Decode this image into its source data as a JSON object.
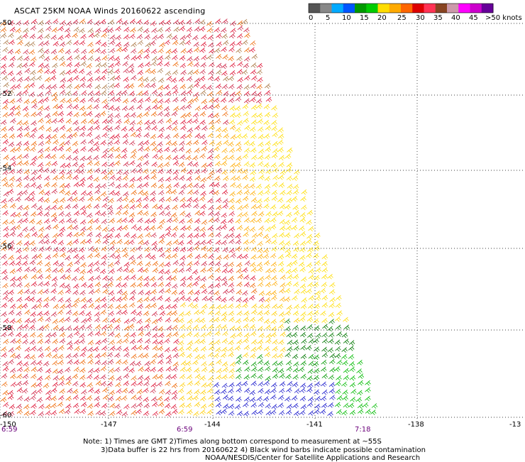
{
  "title": "ASCAT 25KM NOAA Winds 20160622 ascending",
  "scale": {
    "colors": [
      "#555555",
      "#888888",
      "#00aaff",
      "#0055ff",
      "#009900",
      "#00cc00",
      "#ffdd00",
      "#ffaa00",
      "#ff6600",
      "#dd0000",
      "#ff3355",
      "#884422",
      "#cc99aa",
      "#ff00ff",
      "#cc00cc",
      "#660099"
    ],
    "labels": [
      "0",
      "5",
      "10",
      "15",
      "20",
      "25",
      "30",
      "35",
      "40",
      "45",
      ">50 knots"
    ]
  },
  "latitudes": [
    "-50",
    "-52",
    "-54",
    "-56",
    "-58",
    "-60"
  ],
  "longitudes": [
    "-150",
    "-147",
    "-144",
    "-141",
    "-138",
    "-13"
  ],
  "times": [
    "6:59",
    "6:59",
    "7:18"
  ],
  "notes": [
    "Note: 1) Times are GMT 2)Times along bottom correspond to measurement at ~55S",
    "3)Data buffer is 22 hrs from 20160622 4) Black wind barbs indicate possible contamination",
    "NOAA/NESDIS/Center for Satellite Applications and Research"
  ]
}
